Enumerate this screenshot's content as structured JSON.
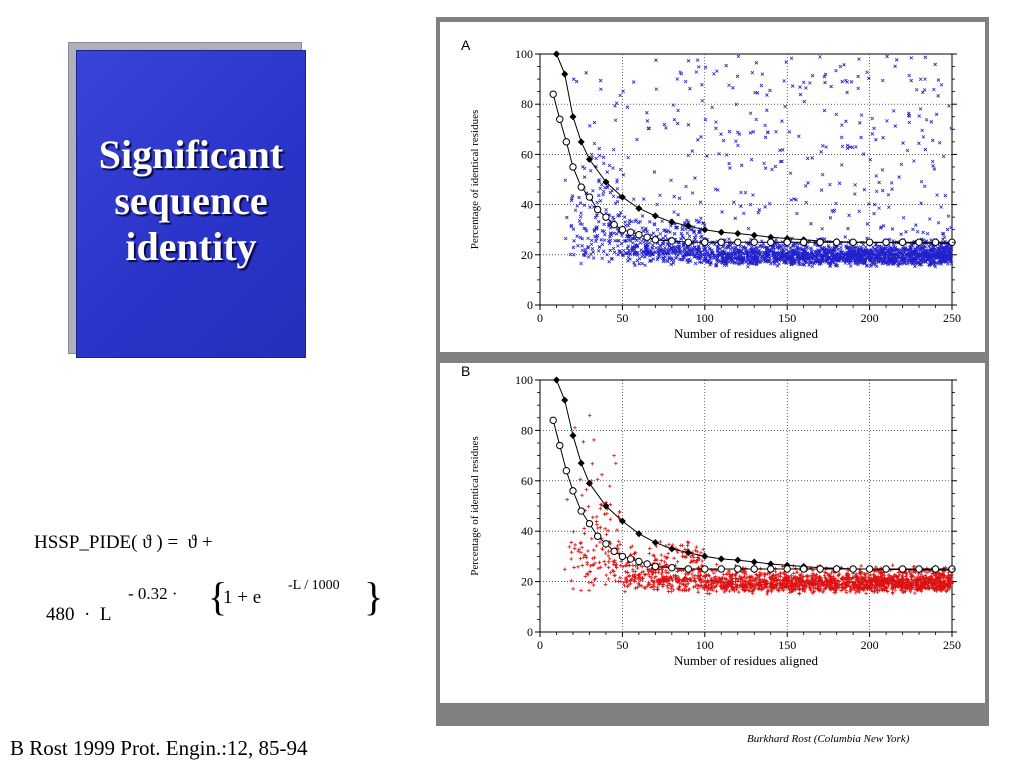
{
  "title_card": {
    "lines": [
      "Significant",
      "sequence",
      "identity"
    ]
  },
  "formula": {
    "line1": "HSSP_PIDE( ϑ ) =  ϑ +",
    "coefficient": "480  ·  L",
    "exponent": "- 0.32 ·",
    "open_brace": "{",
    "inner": "1 + e",
    "inner_exponent": "-L / 1000",
    "close_brace": "}"
  },
  "citation": "B Rost 1999 Prot. Engin.:12, 85-94",
  "credit": "Burkhard Rost (Columbia New York)",
  "chart_data": [
    {
      "type": "scatter",
      "panel_label": "A",
      "xlabel": "Number of residues aligned",
      "ylabel": "Percentage of identical residues",
      "xlim": [
        0,
        250
      ],
      "ylim": [
        0,
        100
      ],
      "xticks": [
        0,
        50,
        100,
        150,
        200,
        250
      ],
      "yticks": [
        0,
        20,
        40,
        60,
        80,
        100
      ],
      "grid": true,
      "marker": "x",
      "point_color": "#2222cc",
      "series": [
        {
          "marker": "filled-diamond",
          "color": "#000000",
          "x": [
            10,
            15,
            20,
            25,
            30,
            40,
            50,
            60,
            70,
            80,
            90,
            100,
            110,
            120,
            130,
            140,
            150,
            160,
            170,
            180,
            190,
            200,
            210,
            220,
            230,
            240,
            250
          ],
          "values": [
            100,
            92,
            75,
            65,
            58,
            49,
            43,
            38.5,
            35.5,
            33,
            31.5,
            30,
            29,
            28.5,
            27.8,
            27,
            26.5,
            26,
            25.5,
            25.3,
            25,
            25,
            24.8,
            24.8,
            24.6,
            24.6,
            24.5
          ]
        },
        {
          "marker": "open-circle",
          "color": "#000000",
          "x": [
            8,
            12,
            16,
            20,
            25,
            30,
            35,
            40,
            45,
            50,
            55,
            60,
            65,
            70,
            80,
            90,
            100,
            110,
            120,
            130,
            140,
            150,
            160,
            170,
            180,
            190,
            200,
            210,
            220,
            230,
            240,
            250
          ],
          "values": [
            84,
            74,
            65,
            55,
            47,
            43,
            38,
            35,
            32,
            30,
            29,
            28,
            27,
            26,
            25.5,
            25,
            25,
            25,
            25,
            25,
            25,
            25,
            25,
            25,
            25,
            25,
            25,
            25,
            25,
            25,
            25,
            25
          ]
        }
      ]
    },
    {
      "type": "scatter",
      "panel_label": "B",
      "xlabel": "Number of residues aligned",
      "ylabel": "Percentage of identical residues",
      "xlim": [
        0,
        250
      ],
      "ylim": [
        0,
        100
      ],
      "xticks": [
        0,
        50,
        100,
        150,
        200,
        250
      ],
      "yticks": [
        0,
        20,
        40,
        60,
        80,
        100
      ],
      "grid": true,
      "marker": "+",
      "point_color": "#dd1111",
      "series": [
        {
          "marker": "filled-diamond",
          "color": "#000000",
          "x": [
            10,
            15,
            20,
            25,
            30,
            40,
            50,
            60,
            70,
            80,
            90,
            100,
            110,
            120,
            130,
            140,
            150,
            160,
            170,
            180,
            190,
            200,
            210,
            220,
            230,
            240,
            250
          ],
          "values": [
            100,
            92,
            78,
            67,
            59,
            50,
            44,
            39,
            35.5,
            33,
            31.5,
            30,
            29,
            28.5,
            27.8,
            27,
            26.5,
            26,
            25.5,
            25.3,
            25,
            25,
            24.8,
            24.8,
            24.6,
            24.6,
            24.5
          ]
        },
        {
          "marker": "open-circle",
          "color": "#000000",
          "x": [
            8,
            12,
            16,
            20,
            25,
            30,
            35,
            40,
            45,
            50,
            55,
            60,
            65,
            70,
            80,
            90,
            100,
            110,
            120,
            130,
            140,
            150,
            160,
            170,
            180,
            190,
            200,
            210,
            220,
            230,
            240,
            250
          ],
          "values": [
            84,
            74,
            64,
            56,
            48,
            43,
            38,
            35,
            32,
            30,
            29,
            28,
            27,
            26,
            25.5,
            25,
            25,
            25,
            25,
            25,
            25,
            25,
            25,
            25,
            25,
            25,
            25,
            25,
            25,
            25,
            25,
            25
          ]
        }
      ]
    }
  ]
}
